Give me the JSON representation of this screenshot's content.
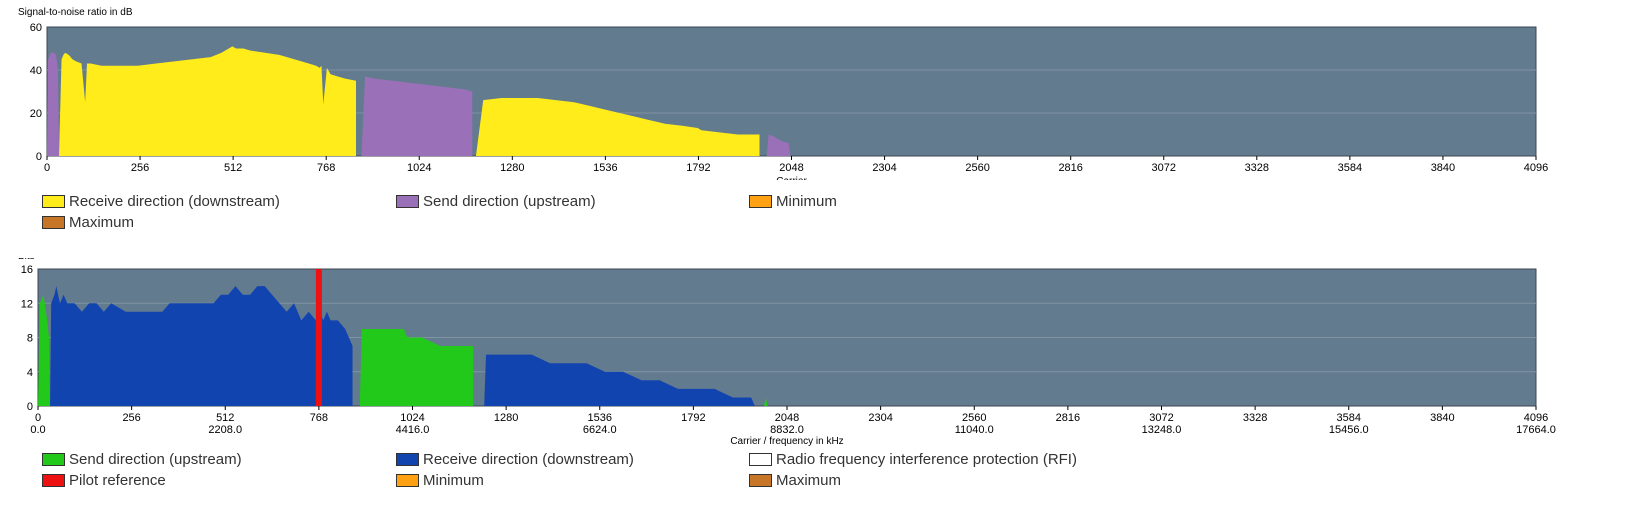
{
  "chart_data": [
    {
      "type": "area",
      "ylabel": "Signal-to-noise ratio in dB",
      "xlabel": "Carrier",
      "xlim": [
        0,
        4096
      ],
      "ylim": [
        0,
        60
      ],
      "yticks": [
        0,
        20,
        40,
        60
      ],
      "xticks": [
        "0",
        "256",
        "512",
        "768",
        "1024",
        "1280",
        "1536",
        "1792",
        "2048",
        "2304",
        "2560",
        "2816",
        "3072",
        "3328",
        "3584",
        "3840",
        "4096"
      ],
      "background": "#637b8f",
      "grid": true,
      "legend_position": "bottom",
      "series": [
        {
          "name": "Receive direction (downstream)",
          "color": "#ffec1a",
          "segments": [
            {
              "x": [
                33,
                40,
                45,
                50,
                60,
                70,
                80,
                95,
                105,
                110,
                120,
                150,
                200,
                250,
                300,
                350,
                400,
                450,
                480,
                500,
                510,
                520,
                540,
                560,
                600,
                640,
                680,
                700,
                720,
                740,
                750,
                755,
                760,
                770,
                780,
                800,
                820,
                850,
                850
              ],
              "y": [
                0,
                45,
                47,
                48,
                47,
                45,
                44,
                43,
                25,
                43,
                43,
                42,
                42,
                42,
                43,
                44,
                45,
                46,
                48,
                50,
                51,
                50,
                50,
                49,
                48,
                47,
                45,
                44,
                43,
                42,
                41,
                42,
                24,
                41,
                38,
                37,
                36,
                35,
                0
              ]
            },
            {
              "x": [
                1180,
                1200,
                1250,
                1300,
                1350,
                1400,
                1450,
                1500,
                1550,
                1600,
                1650,
                1700,
                1750,
                1790,
                1800,
                1850,
                1900,
                1950,
                1960,
                1960
              ],
              "y": [
                0,
                26,
                27,
                27,
                27,
                26,
                25,
                23,
                21,
                19,
                17,
                15,
                14,
                13,
                12,
                11,
                10,
                10,
                10,
                0
              ]
            }
          ]
        },
        {
          "name": "Send direction (upstream)",
          "color": "#9a70b8",
          "segments": [
            {
              "x": [
                0,
                2,
                10,
                20,
                25,
                30,
                33
              ],
              "y": [
                0,
                44,
                48,
                48,
                47,
                40,
                0
              ]
            },
            {
              "x": [
                865,
                875,
                900,
                950,
                1000,
                1050,
                1100,
                1150,
                1170,
                1170
              ],
              "y": [
                0,
                37,
                36,
                35,
                34,
                33,
                32,
                31,
                30,
                0
              ]
            },
            {
              "x": [
                1980,
                1985,
                2000,
                2020,
                2040,
                2045
              ],
              "y": [
                0,
                10,
                9,
                7,
                6,
                0
              ]
            }
          ]
        },
        {
          "name": "Minimum",
          "color": "#ffa113",
          "segments": []
        },
        {
          "name": "Maximum",
          "color": "#c77628",
          "segments": []
        }
      ]
    },
    {
      "type": "area",
      "ylabel": "Bits",
      "xlabel": "Carrier / frequency in kHz",
      "xlim": [
        0,
        4096
      ],
      "ylim": [
        0,
        16
      ],
      "yticks": [
        0,
        4,
        8,
        12,
        16
      ],
      "xticks": [
        "0",
        "256",
        "512",
        "768",
        "1024",
        "1280",
        "1536",
        "1792",
        "2048",
        "2304",
        "2560",
        "2816",
        "3072",
        "3328",
        "3584",
        "3840",
        "4096"
      ],
      "xticks_secondary": [
        "0.0",
        "2208.0",
        "4416.0",
        "6624.0",
        "8832.0",
        "11040.0",
        "13248.0",
        "15456.0",
        "17664.0"
      ],
      "background": "#637b8f",
      "grid": true,
      "legend_position": "bottom",
      "series": [
        {
          "name": "Send direction (upstream)",
          "color": "#22c81a",
          "segments": [
            {
              "x": [
                0,
                5,
                15,
                25,
                30,
                33
              ],
              "y": [
                0,
                12,
                13,
                10,
                8,
                0
              ]
            },
            {
              "x": [
                880,
                885,
                900,
                950,
                1000,
                1010,
                1050,
                1100,
                1150,
                1170,
                1190,
                1190
              ],
              "y": [
                0,
                9,
                9,
                9,
                9,
                8,
                8,
                7,
                7,
                7,
                7,
                0
              ]
            },
            {
              "x": [
                1985,
                1990,
                1995
              ],
              "y": [
                0,
                1,
                0
              ]
            }
          ]
        },
        {
          "name": "Receive direction (downstream)",
          "color": "#1244b0",
          "segments": [
            {
              "x": [
                33,
                36,
                45,
                50,
                55,
                60,
                70,
                80,
                100,
                120,
                140,
                160,
                180,
                200,
                240,
                280,
                300,
                320,
                340,
                360,
                400,
                440,
                460,
                480,
                500,
                520,
                540,
                560,
                580,
                600,
                620,
                640,
                660,
                680,
                700,
                720,
                740,
                760,
                770,
                780,
                790,
                800,
                810,
                820,
                840,
                860,
                860
              ],
              "y": [
                0,
                12,
                13,
                14,
                13,
                12,
                13,
                12,
                12,
                11,
                12,
                12,
                11,
                12,
                11,
                11,
                11,
                11,
                11,
                12,
                12,
                12,
                12,
                12,
                13,
                13,
                14,
                13,
                13,
                14,
                14,
                13,
                12,
                11,
                12,
                10,
                11,
                10,
                11,
                10,
                11,
                10,
                10,
                10,
                9,
                7,
                0
              ]
            },
            {
              "x": [
                1220,
                1225,
                1250,
                1300,
                1350,
                1400,
                1450,
                1500,
                1550,
                1600,
                1650,
                1700,
                1750,
                1800,
                1850,
                1900,
                1950,
                1960
              ],
              "y": [
                0,
                6,
                6,
                6,
                6,
                5,
                5,
                5,
                4,
                4,
                3,
                3,
                2,
                2,
                2,
                1,
                1,
                0
              ]
            }
          ]
        },
        {
          "name": "Radio frequency interference protection (RFI)",
          "color": "#ffffff",
          "segments": []
        },
        {
          "name": "Pilot reference",
          "color": "#ee1111",
          "marker_x": 768
        },
        {
          "name": "Minimum",
          "color": "#ffa113",
          "segments": []
        },
        {
          "name": "Maximum",
          "color": "#c77628",
          "segments": []
        }
      ]
    }
  ]
}
